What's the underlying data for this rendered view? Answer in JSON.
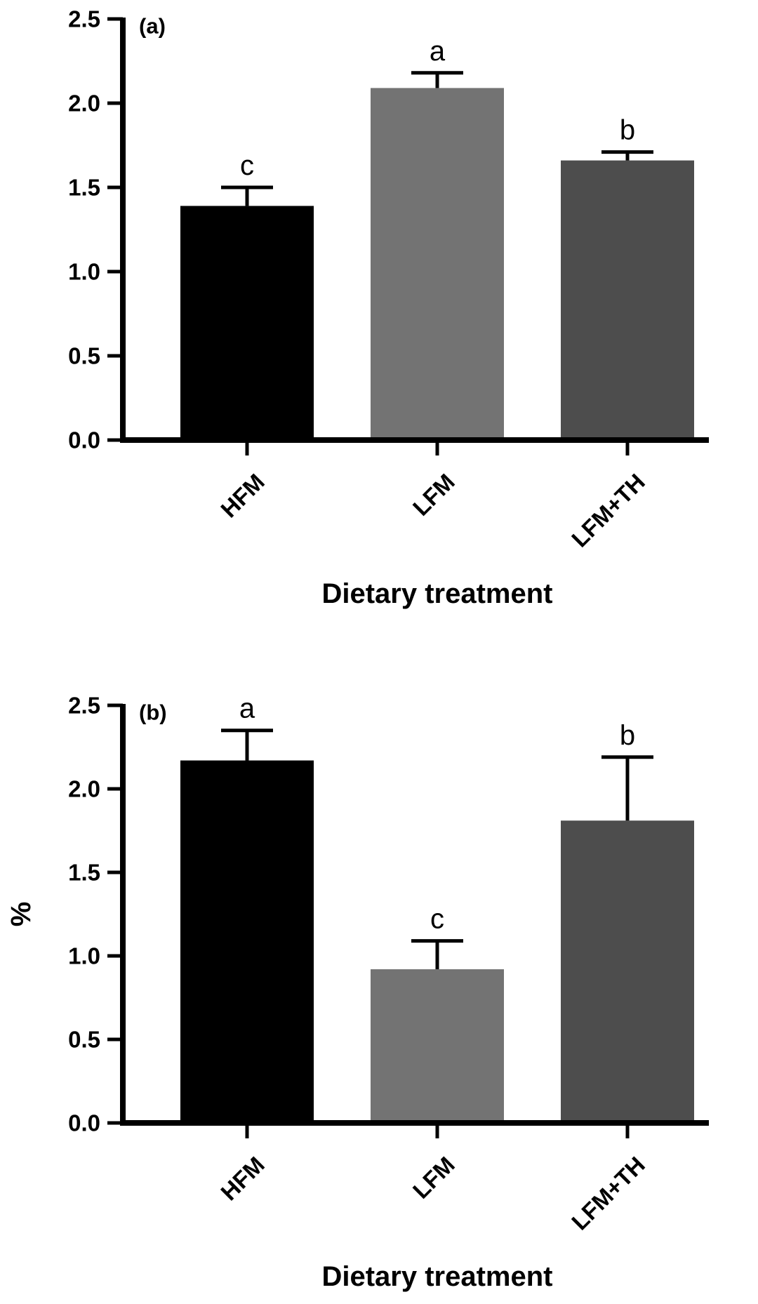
{
  "chart_data": [
    {
      "type": "bar",
      "panel_label": "(a)",
      "categories": [
        "HFM",
        "LFM",
        "LFM+TH"
      ],
      "values": [
        1.39,
        2.09,
        1.66
      ],
      "errors": [
        0.11,
        0.09,
        0.05
      ],
      "significance": [
        "c",
        "a",
        "b"
      ],
      "bar_colors": [
        "#000000",
        "#737373",
        "#4d4d4d"
      ],
      "xlabel": "Dietary treatment",
      "ylabel": "",
      "ylim": [
        0,
        2.5
      ],
      "yticks": [
        "0.0",
        "0.5",
        "1.0",
        "1.5",
        "2.0",
        "2.5"
      ],
      "grid": false
    },
    {
      "type": "bar",
      "panel_label": "(b)",
      "categories": [
        "HFM",
        "LFM",
        "LFM+TH"
      ],
      "values": [
        2.17,
        0.92,
        1.81
      ],
      "errors": [
        0.18,
        0.17,
        0.38
      ],
      "significance": [
        "a",
        "c",
        "b"
      ],
      "bar_colors": [
        "#000000",
        "#737373",
        "#4d4d4d"
      ],
      "xlabel": "Dietary treatment",
      "ylabel": "%",
      "ylim": [
        0,
        2.5
      ],
      "yticks": [
        "0.0",
        "0.5",
        "1.0",
        "1.5",
        "2.0",
        "2.5"
      ],
      "grid": false
    }
  ]
}
